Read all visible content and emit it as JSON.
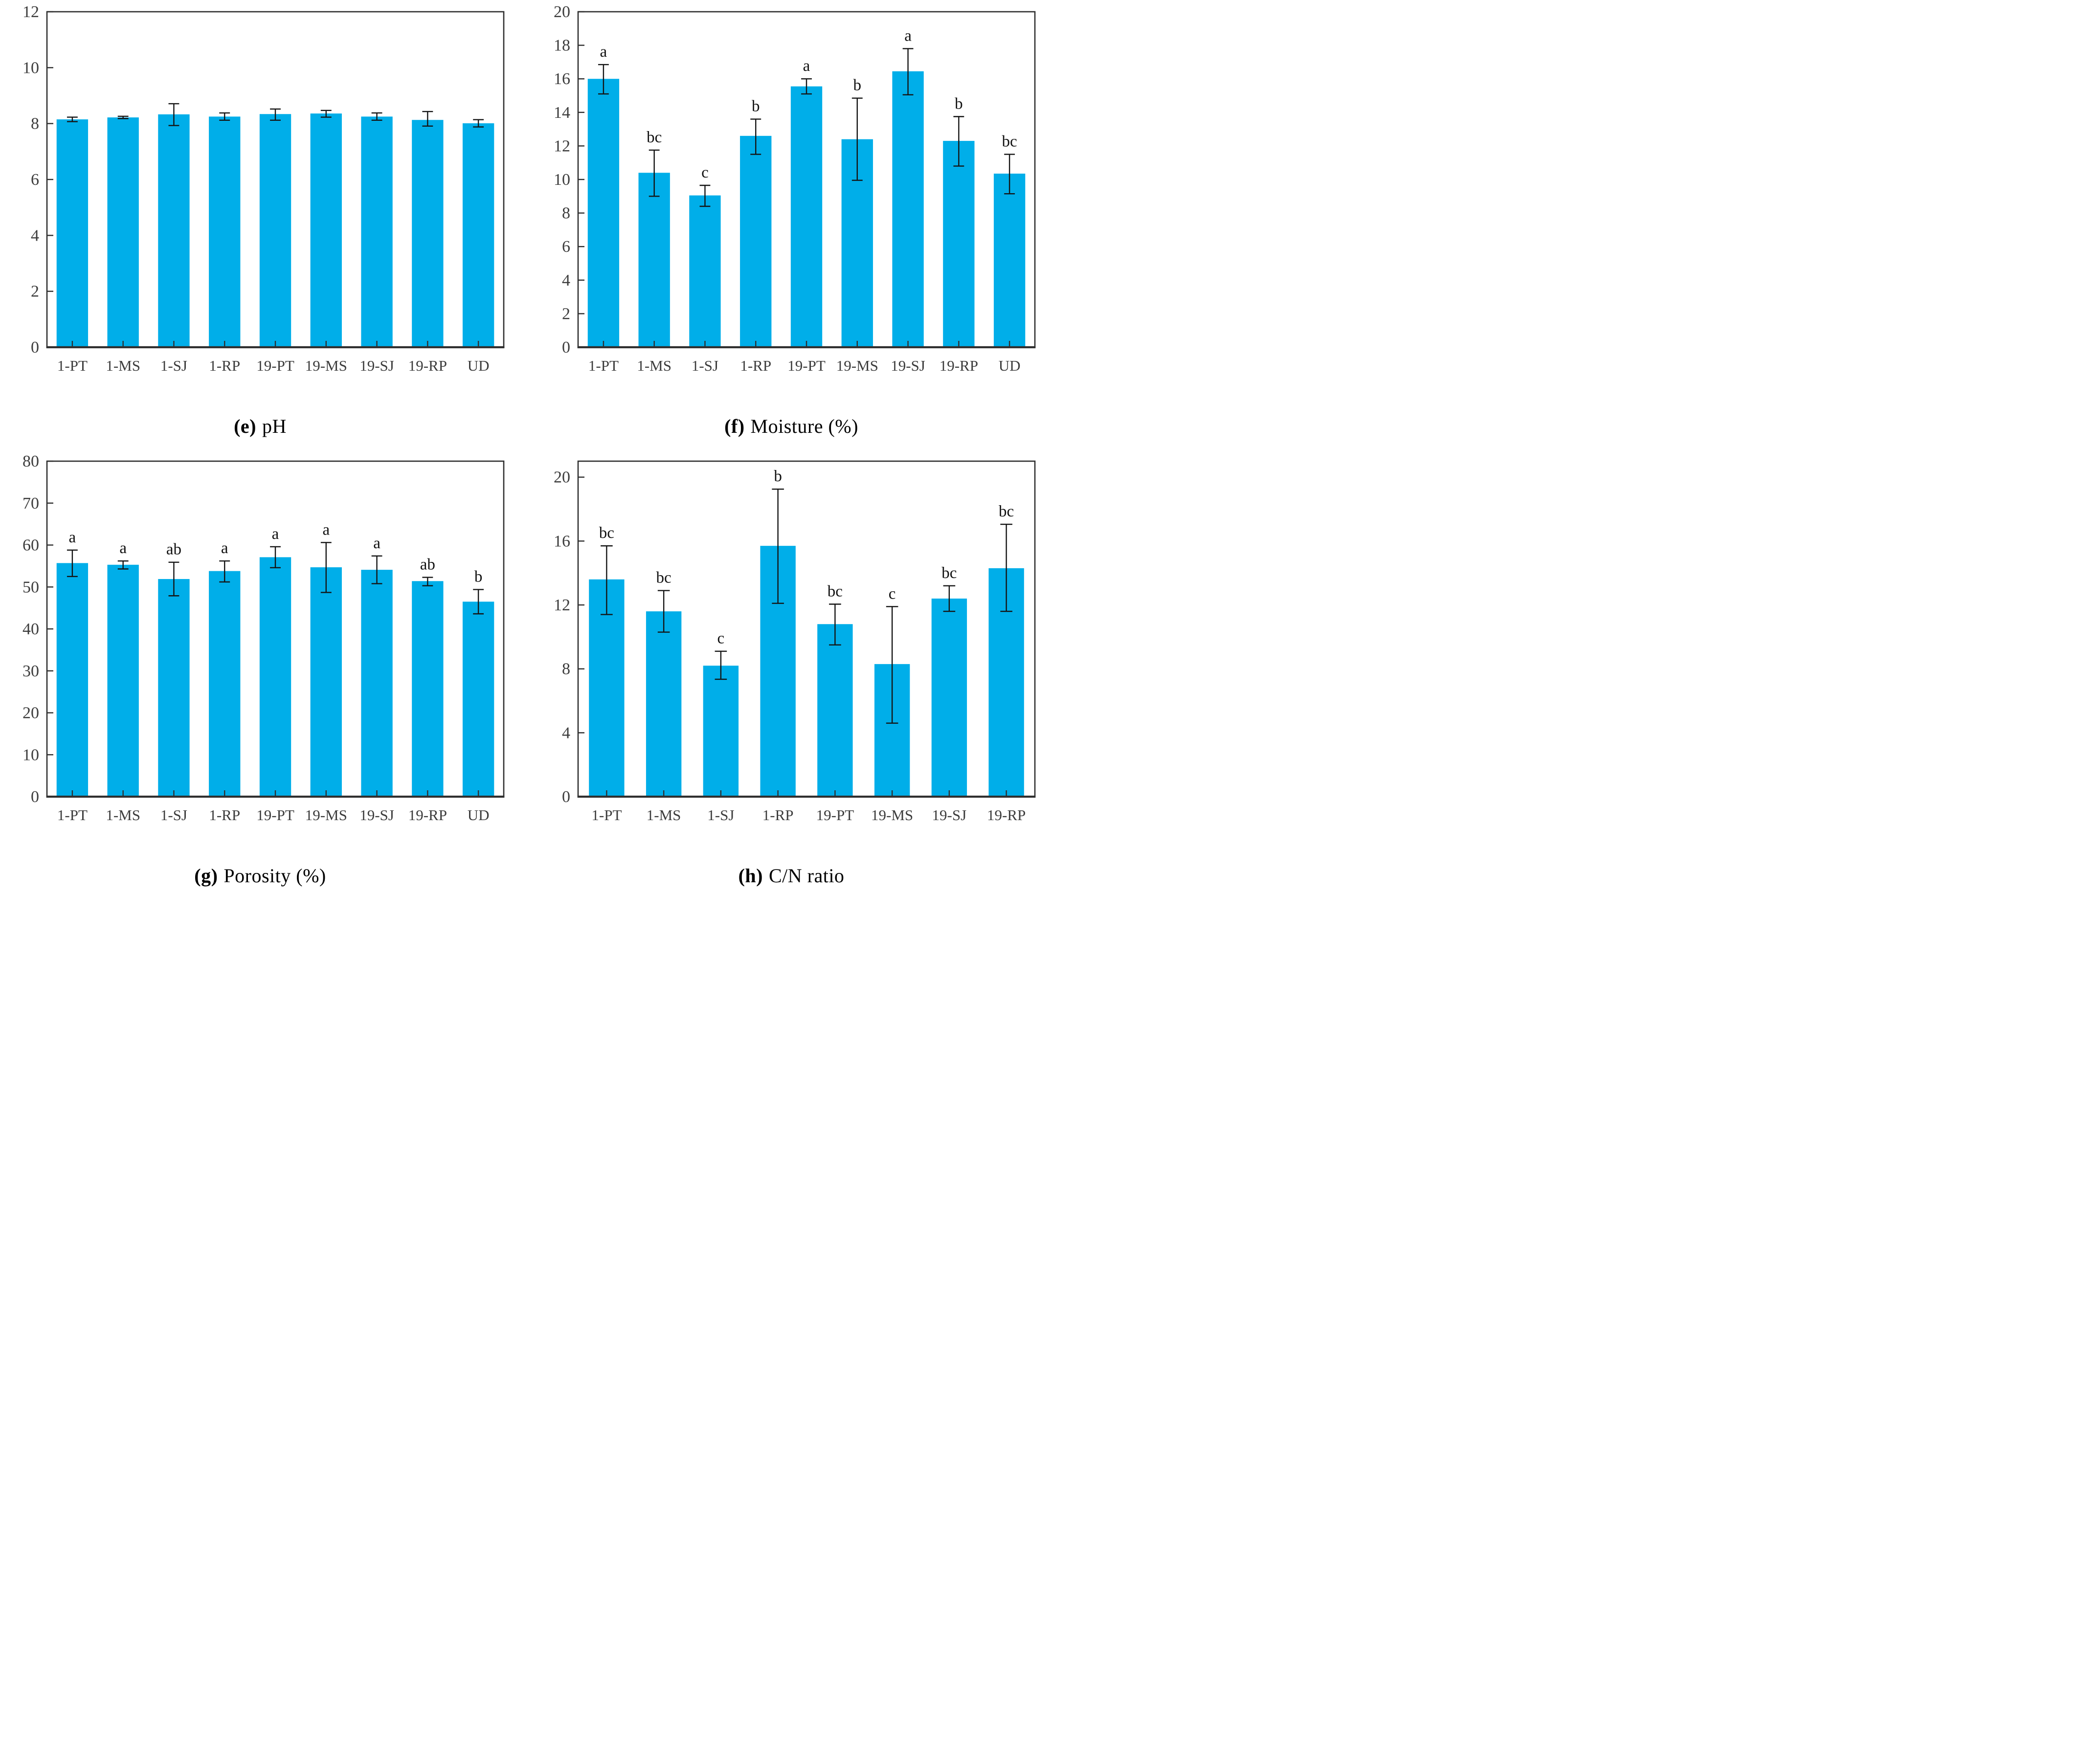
{
  "figure": {
    "background": "#ffffff",
    "bar_color": "#00aee9",
    "axis_color": "#2f2f2f",
    "tick_label_color": "#3c3c3c",
    "error_bar_color": "#141414",
    "letter_color": "#111111",
    "caption_color": "#000000"
  },
  "chart_data": [
    {
      "id": "e",
      "type": "bar",
      "title": "pH",
      "caption": {
        "prefix": "(e)",
        "label": "pH"
      },
      "categories": [
        "1-PT",
        "1-MS",
        "1-SJ",
        "1-RP",
        "19-PT",
        "19-MS",
        "19-SJ",
        "19-RP",
        "UD"
      ],
      "values": [
        8.15,
        8.22,
        8.33,
        8.25,
        8.34,
        8.36,
        8.25,
        8.13,
        8.01
      ],
      "err_up": [
        0.08,
        0.04,
        0.38,
        0.13,
        0.18,
        0.11,
        0.13,
        0.3,
        0.13
      ],
      "err_down": [
        0.08,
        0.04,
        0.4,
        0.13,
        0.22,
        0.13,
        0.13,
        0.22,
        0.13
      ],
      "letters": [
        "",
        "",
        "",
        "",
        "",
        "",
        "",
        "",
        ""
      ],
      "ylim": [
        0,
        12
      ],
      "ytick_step": 2,
      "grid": false,
      "legend_position": "none"
    },
    {
      "id": "f",
      "type": "bar",
      "title": "Moisture (%)",
      "caption": {
        "prefix": "(f)",
        "label": "Moisture (%)"
      },
      "categories": [
        "1-PT",
        "1-MS",
        "1-SJ",
        "1-RP",
        "19-PT",
        "19-MS",
        "19-SJ",
        "19-RP",
        "UD"
      ],
      "values": [
        16.0,
        10.4,
        9.05,
        12.6,
        15.55,
        12.4,
        16.45,
        12.3,
        10.35
      ],
      "err_up": [
        0.85,
        1.35,
        0.6,
        1.0,
        0.45,
        2.45,
        1.35,
        1.45,
        1.15
      ],
      "err_down": [
        0.9,
        1.4,
        0.65,
        1.1,
        0.45,
        2.45,
        1.4,
        1.5,
        1.2
      ],
      "letters": [
        "a",
        "bc",
        "c",
        "b",
        "a",
        "b",
        "a",
        "b",
        "bc"
      ],
      "ylim": [
        0,
        20
      ],
      "ytick_step": 2,
      "grid": false,
      "legend_position": "none"
    },
    {
      "id": "g",
      "type": "bar",
      "title": "Porosity (%)",
      "caption": {
        "prefix": "(g)",
        "label": "Porosity (%)"
      },
      "categories": [
        "1-PT",
        "1-MS",
        "1-SJ",
        "1-RP",
        "19-PT",
        "19-MS",
        "19-SJ",
        "19-RP",
        "UD"
      ],
      "values": [
        55.7,
        55.3,
        51.9,
        53.8,
        57.1,
        54.7,
        54.1,
        51.4,
        46.5
      ],
      "err_up": [
        3.1,
        0.9,
        4.0,
        2.4,
        2.5,
        5.9,
        3.3,
        0.9,
        2.9
      ],
      "err_down": [
        3.2,
        1.0,
        4.0,
        2.6,
        2.5,
        6.0,
        3.3,
        1.1,
        2.9
      ],
      "letters": [
        "a",
        "a",
        "ab",
        "a",
        "a",
        "a",
        "a",
        "ab",
        "b"
      ],
      "ylim": [
        0,
        80
      ],
      "ytick_step": 10,
      "grid": false,
      "legend_position": "none"
    },
    {
      "id": "h",
      "type": "bar",
      "title": "C/N ratio",
      "caption": {
        "prefix": "(h)",
        "label": "C/N ratio"
      },
      "categories": [
        "1-PT",
        "1-MS",
        "1-SJ",
        "1-RP",
        "19-PT",
        "19-MS",
        "19-SJ",
        "19-RP"
      ],
      "values": [
        13.6,
        11.6,
        8.2,
        15.7,
        10.8,
        8.3,
        12.4,
        14.3
      ],
      "err_up": [
        2.1,
        1.3,
        0.9,
        3.55,
        1.25,
        3.6,
        0.8,
        2.75
      ],
      "err_down": [
        2.2,
        1.3,
        0.85,
        3.6,
        1.3,
        3.7,
        0.8,
        2.7
      ],
      "letters": [
        "bc",
        "bc",
        "c",
        "b",
        "bc",
        "c",
        "bc",
        "bc"
      ],
      "ylim": [
        0,
        21
      ],
      "ytick_step": 4,
      "grid": false,
      "legend_position": "none"
    }
  ]
}
